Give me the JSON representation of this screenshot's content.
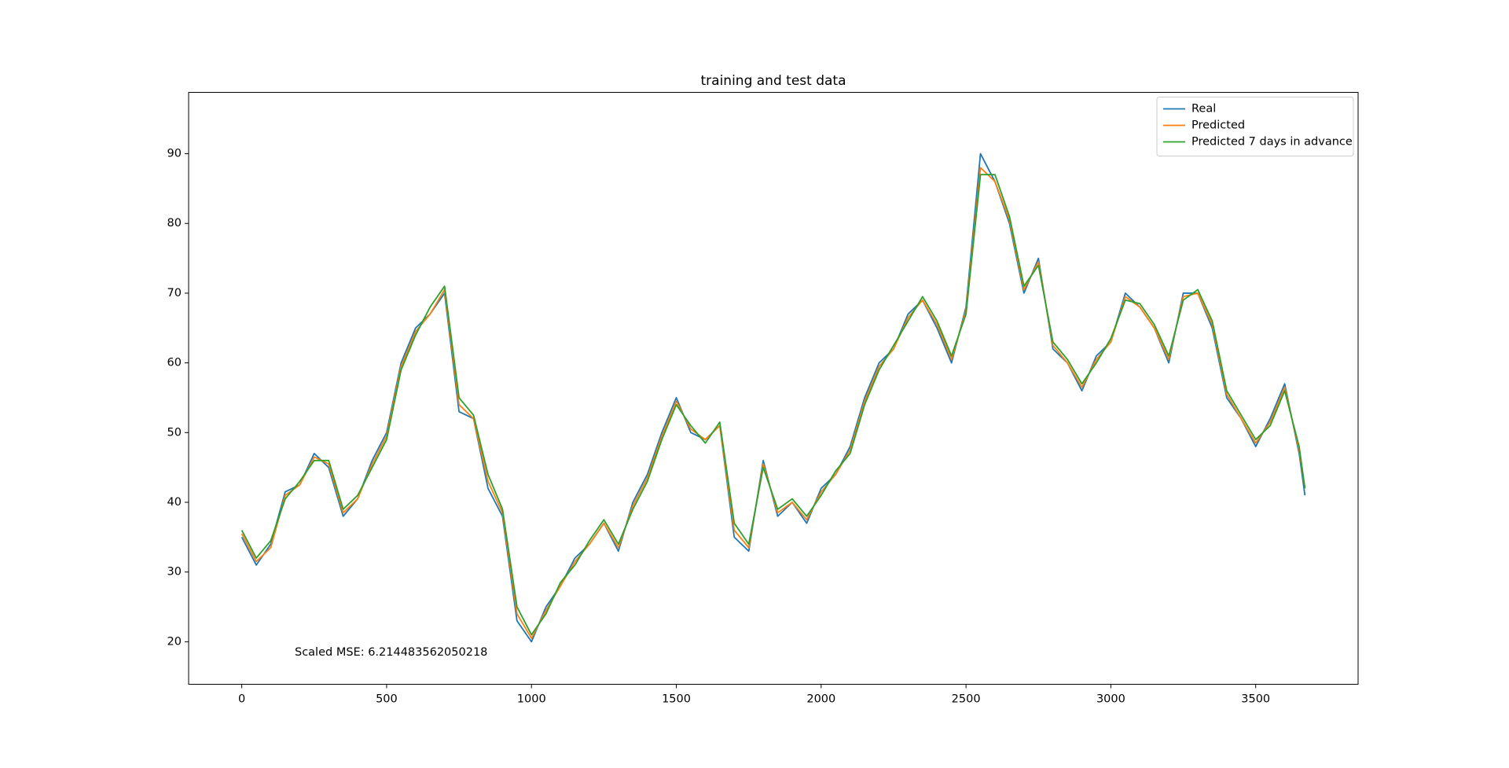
{
  "chart_data": {
    "type": "line",
    "title": "training and test data",
    "annotation": "Scaled MSE: 6.214483562050218",
    "x": [
      0,
      50,
      100,
      150,
      200,
      250,
      300,
      350,
      400,
      450,
      500,
      550,
      600,
      650,
      700,
      750,
      800,
      850,
      900,
      950,
      1000,
      1050,
      1100,
      1150,
      1200,
      1250,
      1300,
      1350,
      1400,
      1450,
      1500,
      1550,
      1600,
      1650,
      1700,
      1750,
      1800,
      1850,
      1900,
      1950,
      2000,
      2050,
      2100,
      2150,
      2200,
      2250,
      2300,
      2350,
      2400,
      2450,
      2500,
      2550,
      2600,
      2650,
      2700,
      2750,
      2800,
      2850,
      2900,
      2950,
      3000,
      3050,
      3100,
      3150,
      3200,
      3250,
      3300,
      3350,
      3400,
      3450,
      3500,
      3550,
      3600,
      3650,
      3670
    ],
    "series": [
      {
        "name": "Real",
        "color": "#1f77b4",
        "values": [
          35,
          31,
          34,
          41.5,
          42.5,
          47,
          45,
          38,
          40.5,
          46,
          50,
          60,
          65,
          67,
          70,
          53,
          52,
          42,
          38,
          23,
          20,
          25,
          28,
          32,
          34,
          37,
          33,
          40,
          44,
          50,
          55,
          50,
          49,
          51,
          35,
          33,
          46,
          38,
          40,
          37,
          42,
          44,
          48,
          55,
          60,
          62,
          67,
          69,
          65,
          60,
          68,
          90,
          86,
          80,
          70,
          75,
          62,
          60,
          56,
          61,
          63,
          70,
          68,
          65,
          60,
          70,
          70,
          65,
          55,
          52,
          48,
          52,
          57,
          47,
          41
        ]
      },
      {
        "name": "Predicted",
        "color": "#ff7f0e",
        "values": [
          35.5,
          31.5,
          33.5,
          41,
          42.5,
          46.5,
          45.5,
          38.5,
          40.5,
          45.5,
          49.5,
          59.5,
          64.5,
          67,
          70.5,
          54,
          52,
          43,
          38.5,
          24,
          20.5,
          24.5,
          28,
          31.5,
          34,
          37,
          33.5,
          39.5,
          43.5,
          49.5,
          54.5,
          50.5,
          49,
          51,
          36,
          33.5,
          45.5,
          38.5,
          40,
          37.5,
          41.5,
          44,
          47.5,
          54.5,
          59.5,
          62,
          66.5,
          69,
          65.5,
          60.5,
          67.5,
          88,
          86,
          80.5,
          70.5,
          74.5,
          62.5,
          60,
          56.5,
          60.5,
          63,
          69.5,
          68,
          65,
          60.5,
          69.5,
          70,
          65.5,
          55.5,
          52,
          48.5,
          51.5,
          56.5,
          47.5,
          42
        ]
      },
      {
        "name": "Predicted 7 days in advance",
        "color": "#2ca02c",
        "values": [
          36,
          32,
          34.5,
          40.5,
          43,
          46,
          46,
          39,
          41,
          45,
          49,
          59,
          64,
          68,
          71,
          55,
          52.5,
          44,
          39,
          25,
          21,
          24,
          28.5,
          31,
          34.5,
          37.5,
          34,
          39,
          43,
          49,
          54,
          51,
          48.5,
          51.5,
          37,
          34,
          45,
          39,
          40.5,
          38,
          41,
          44.5,
          47,
          54,
          59,
          62.5,
          66,
          69.5,
          66,
          61,
          67,
          87,
          87,
          81,
          71,
          74,
          63,
          60.5,
          57,
          60,
          63.5,
          69,
          68.5,
          65.5,
          61,
          69,
          70.5,
          66,
          56,
          52.5,
          49,
          51,
          56,
          48,
          42
        ]
      }
    ],
    "xlim": [
      -183.5,
      3853.5
    ],
    "xticks": [
      0,
      500,
      1000,
      1500,
      2000,
      2500,
      3000,
      3500
    ],
    "ylim": [
      13.9,
      98.8
    ],
    "yticks": [
      20,
      30,
      40,
      50,
      60,
      70,
      80,
      90
    ],
    "grid": false,
    "legend": "upper right"
  }
}
